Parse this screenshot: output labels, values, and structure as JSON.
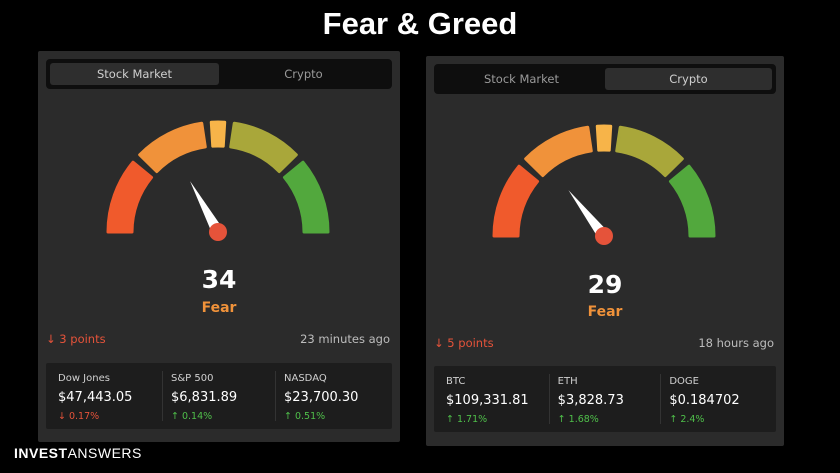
{
  "page": {
    "title": "Fear & Greed"
  },
  "brand": {
    "bold": "INVEST",
    "light": "ANSWERS"
  },
  "colors": {
    "extreme_fear": "#f05a2c",
    "fear": "#f0923a",
    "neutral": "#f7b449",
    "greed": "#a9a73a",
    "extreme_greed": "#52a83d",
    "needle_dot": "#e5533a"
  },
  "panels": [
    {
      "tabs": [
        {
          "label": "Stock Market",
          "active": true
        },
        {
          "label": "Crypto",
          "active": false
        }
      ],
      "score": "34",
      "score_value": 34,
      "label": "Fear",
      "change": "↓ 3 points",
      "updated": "23 minutes ago",
      "markets": [
        {
          "name": "Dow Jones",
          "price": "$47,443.05",
          "change": "↓ 0.17%",
          "direction": "down"
        },
        {
          "name": "S&P 500",
          "price": "$6,831.89",
          "change": "↑ 0.14%",
          "direction": "up"
        },
        {
          "name": "NASDAQ",
          "price": "$23,700.30",
          "change": "↑ 0.51%",
          "direction": "up"
        }
      ]
    },
    {
      "tabs": [
        {
          "label": "Stock Market",
          "active": false
        },
        {
          "label": "Crypto",
          "active": true
        }
      ],
      "score": "29",
      "score_value": 29,
      "label": "Fear",
      "change": "↓ 5 points",
      "updated": "18 hours ago",
      "markets": [
        {
          "name": "BTC",
          "price": "$109,331.81",
          "change": "↑ 1.71%",
          "direction": "up"
        },
        {
          "name": "ETH",
          "price": "$3,828.73",
          "change": "↑ 1.68%",
          "direction": "up"
        },
        {
          "name": "DOGE",
          "price": "$0.184702",
          "change": "↑ 2.4%",
          "direction": "up"
        }
      ]
    }
  ]
}
